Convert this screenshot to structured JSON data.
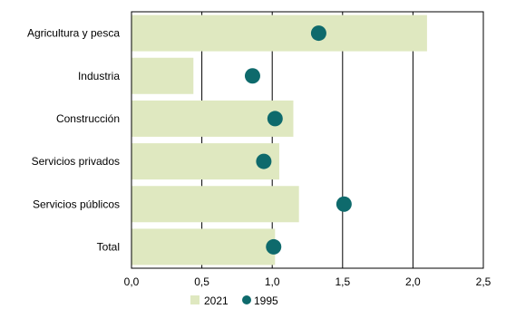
{
  "chart_data": {
    "type": "bar",
    "orientation": "horizontal",
    "categories": [
      "Agricultura y pesca",
      "Industria",
      "Construcción",
      "Servicios privados",
      "Servicios públicos",
      "Total"
    ],
    "series": [
      {
        "name": "2021",
        "mark": "bar",
        "color": "#dfe8c0",
        "values": [
          2.1,
          0.44,
          1.15,
          1.05,
          1.19,
          1.02
        ]
      },
      {
        "name": "1995",
        "mark": "dot",
        "color": "#0e6a6c",
        "values": [
          1.33,
          0.86,
          1.02,
          0.94,
          1.51,
          1.01
        ]
      }
    ],
    "xlim": [
      0,
      2.5
    ],
    "xticks": [
      "0,0",
      "0,5",
      "1,0",
      "1,5",
      "2,0",
      "2,5"
    ],
    "xtick_values": [
      0,
      0.5,
      1.0,
      1.5,
      2.0,
      2.5
    ],
    "grid": "vertical",
    "legend_position": "bottom-center",
    "title": "",
    "xlabel": "",
    "ylabel": ""
  }
}
